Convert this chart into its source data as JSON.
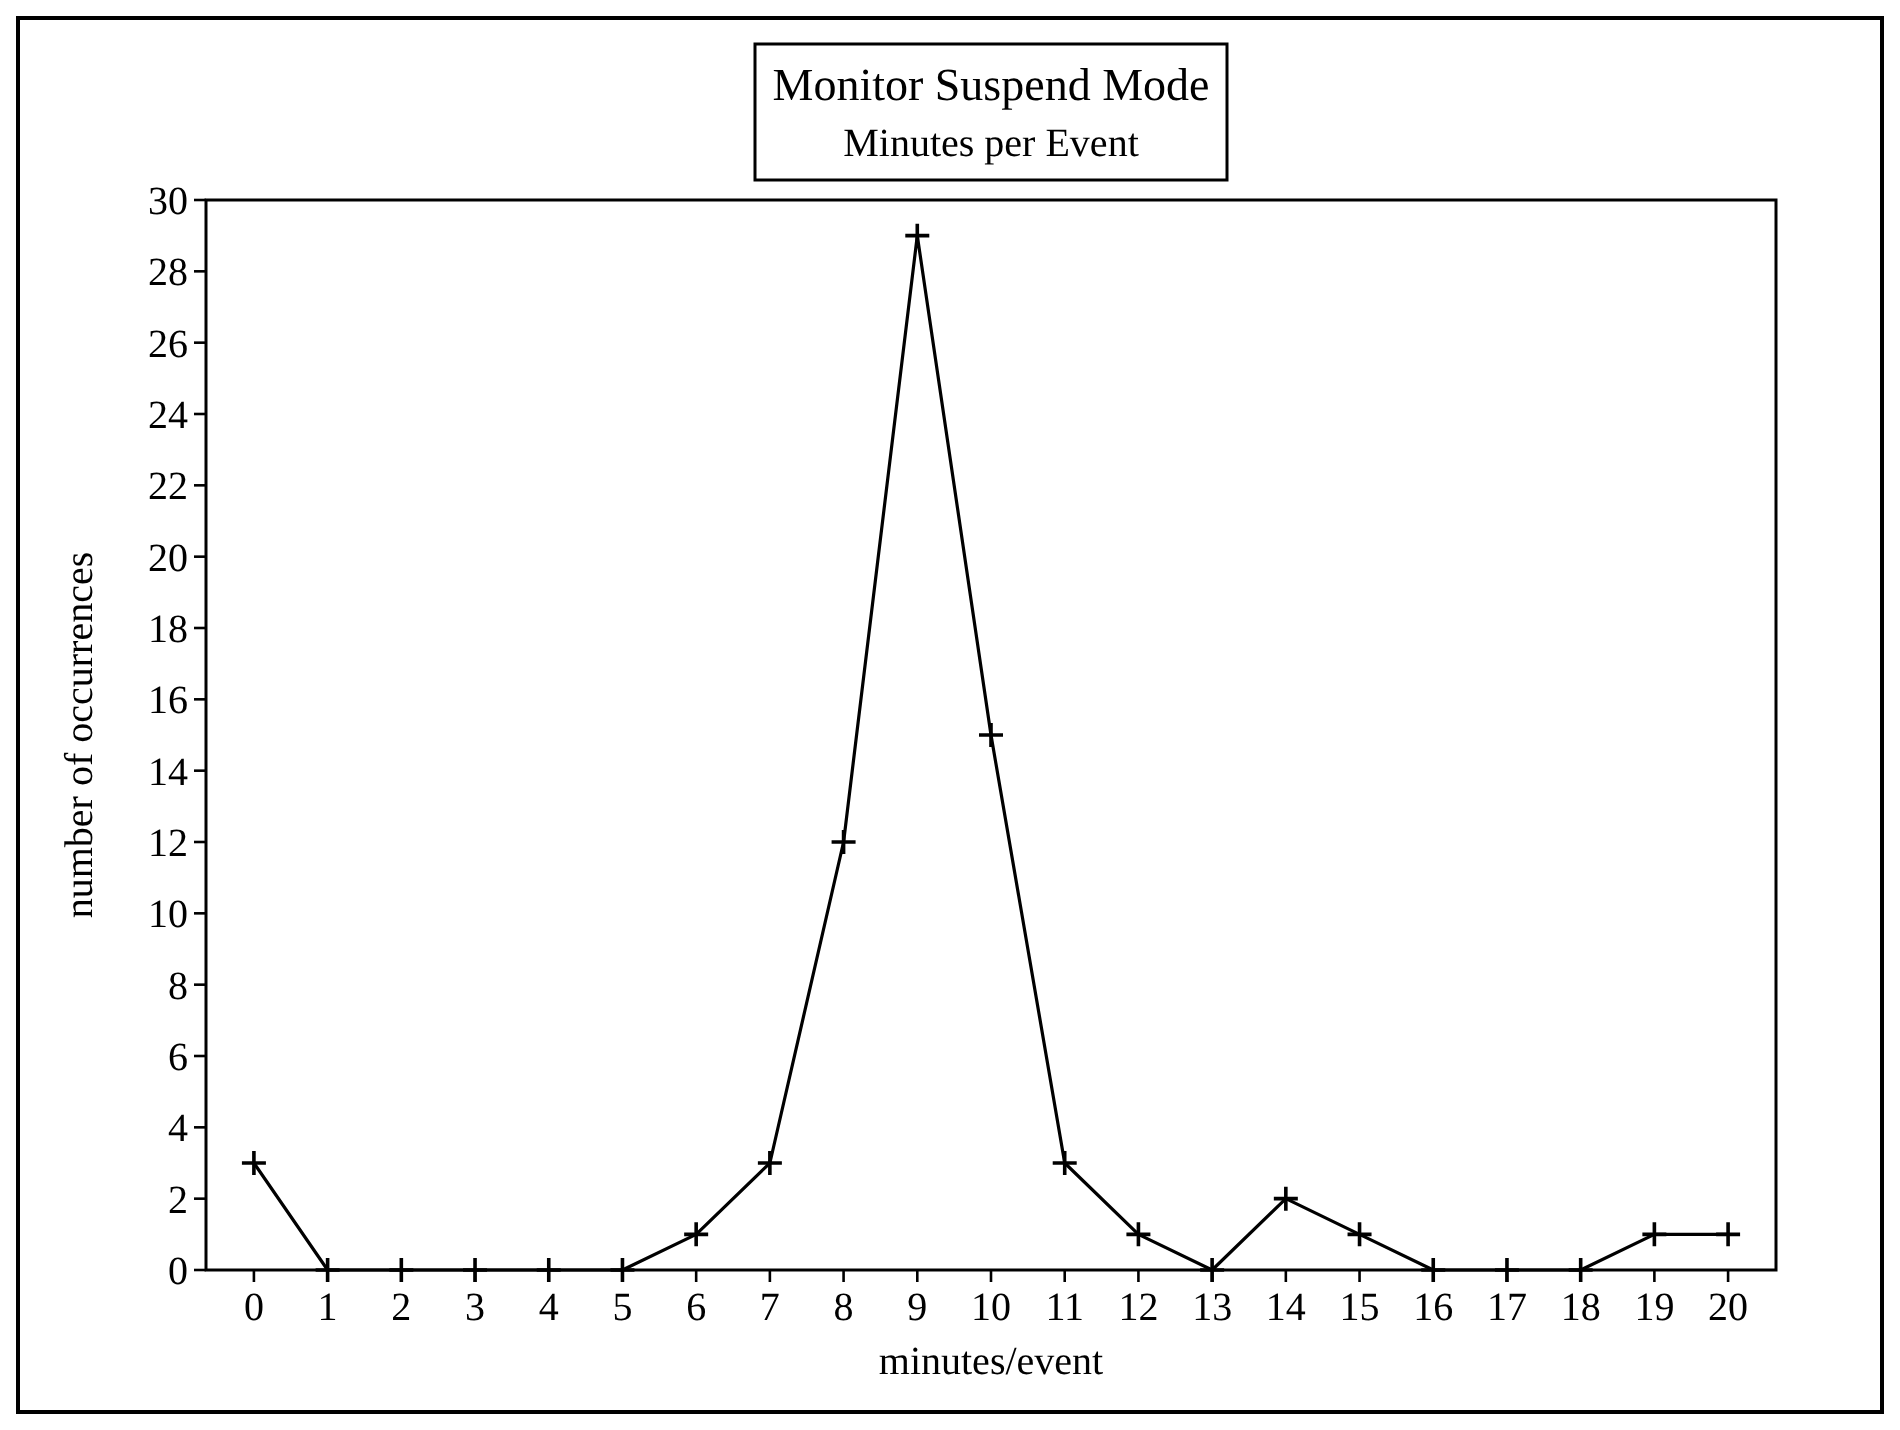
{
  "chart_data": {
    "type": "line",
    "title": "Monitor Suspend Mode",
    "subtitle": "Minutes per Event",
    "xlabel": "minutes/event",
    "ylabel": "number of occurrences",
    "x": [
      0,
      1,
      2,
      3,
      4,
      5,
      6,
      7,
      8,
      9,
      10,
      11,
      12,
      13,
      14,
      15,
      16,
      17,
      18,
      19,
      20
    ],
    "series": [
      {
        "color": "#000000",
        "values": [
          3,
          0,
          0,
          0,
          0,
          0,
          1,
          3,
          12,
          29,
          15,
          3,
          1,
          0,
          2,
          1,
          0,
          0,
          0,
          1,
          1
        ]
      }
    ],
    "xlim": [
      -0.65,
      20.65
    ],
    "xticks": [
      0,
      1,
      2,
      3,
      4,
      5,
      6,
      7,
      8,
      9,
      10,
      11,
      12,
      13,
      14,
      15,
      16,
      17,
      18,
      19,
      20
    ],
    "ylim": [
      0,
      30
    ],
    "yticks": [
      0,
      2,
      4,
      6,
      8,
      10,
      12,
      14,
      16,
      18,
      20,
      22,
      24,
      26,
      28,
      30
    ],
    "marker": "cross",
    "line_style": "solid",
    "grid": false
  }
}
